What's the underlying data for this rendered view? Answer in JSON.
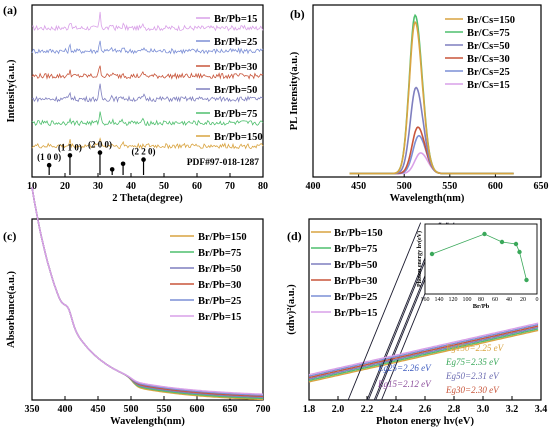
{
  "figure": {
    "panels": [
      "(a)",
      "(b)",
      "(c)",
      "(d)"
    ]
  },
  "chart_data": [
    {
      "panel": "(a)",
      "type": "line",
      "xlabel": "2 Theta(degree)",
      "ylabel": "Intensity(a.u.)",
      "xlim": [
        10,
        80
      ],
      "xticks": [
        10,
        20,
        30,
        40,
        50,
        60,
        70,
        80
      ],
      "grid": false,
      "legend_position": "top-right",
      "series": [
        {
          "name": "Br/Pb=15",
          "color": "#d9a0e8"
        },
        {
          "name": "Br/Pb=25",
          "color": "#7c8fd6"
        },
        {
          "name": "Br/Pb=30",
          "color": "#c8553a"
        },
        {
          "name": "Br/Pb=50",
          "color": "#7f7fbf"
        },
        {
          "name": "Br/Pb=75",
          "color": "#4fbf6e"
        },
        {
          "name": "Br/Pb=150",
          "color": "#d9a441"
        }
      ],
      "peaks": [
        21.5,
        30.6,
        34.3,
        37.6,
        43.8
      ],
      "reference": {
        "label": "PDF#97-018-1287",
        "sticks": [
          {
            "x": 15.2,
            "h": 0.35
          },
          {
            "x": 21.5,
            "h": 0.7
          },
          {
            "x": 30.6,
            "h": 0.8
          },
          {
            "x": 34.3,
            "h": 0.2
          },
          {
            "x": 37.6,
            "h": 0.4
          },
          {
            "x": 43.8,
            "h": 0.55
          }
        ],
        "hkl": [
          {
            "label": "(1 0 0)",
            "x": 15.2
          },
          {
            "label": "(1 1 0)",
            "x": 21.5
          },
          {
            "label": "(2 0 0)",
            "x": 30.6
          },
          {
            "label": "(2 2 0)",
            "x": 43.8
          }
        ]
      }
    },
    {
      "panel": "(b)",
      "type": "line",
      "xlabel": "Wavelength(nm)",
      "ylabel": "PL Intensity(a.u.)",
      "xlim": [
        400,
        650
      ],
      "xticks": [
        400,
        450,
        500,
        550,
        600,
        650
      ],
      "grid": false,
      "legend_position": "top-right",
      "series": [
        {
          "name": "Br/Cs=150",
          "color": "#d9a441",
          "peak_x": 512,
          "peak_y": 0.88
        },
        {
          "name": "Br/Cs=75",
          "color": "#4fbf6e",
          "peak_x": 512,
          "peak_y": 0.92
        },
        {
          "name": "Br/Cs=50",
          "color": "#7f7fbf",
          "peak_x": 513,
          "peak_y": 0.5
        },
        {
          "name": "Br/Cs=30",
          "color": "#c8553a",
          "peak_x": 515,
          "peak_y": 0.27
        },
        {
          "name": "Br/Cs=25",
          "color": "#7c8fd6",
          "peak_x": 516,
          "peak_y": 0.22
        },
        {
          "name": "Br/Cs=15",
          "color": "#d9a0e8",
          "peak_x": 518,
          "peak_y": 0.12
        }
      ]
    },
    {
      "panel": "(c)",
      "type": "line",
      "xlabel": "Wavelength(nm)",
      "ylabel": "Absorbance(a.u.)",
      "xlim": [
        350,
        700
      ],
      "xticks": [
        350,
        400,
        450,
        500,
        550,
        600,
        650,
        700
      ],
      "grid": false,
      "legend_position": "top-right",
      "series": [
        {
          "name": "Br/Pb=150",
          "color": "#d9a441"
        },
        {
          "name": "Br/Pb=75",
          "color": "#4fbf6e"
        },
        {
          "name": "Br/Pb=50",
          "color": "#7f7fbf"
        },
        {
          "name": "Br/Pb=30",
          "color": "#c8553a"
        },
        {
          "name": "Br/Pb=25",
          "color": "#7c8fd6"
        },
        {
          "name": "Br/Pb=15",
          "color": "#d9a0e8"
        }
      ]
    },
    {
      "panel": "(d)",
      "type": "line",
      "xlabel": "Photon energy hv(eV)",
      "ylabel": "(αhv)²(a.u.)",
      "xlim": [
        1.8,
        3.4
      ],
      "xticks": [
        1.8,
        2.0,
        2.2,
        2.4,
        2.6,
        2.8,
        3.0,
        3.2,
        3.4
      ],
      "grid": false,
      "legend_position": "top-left",
      "series": [
        {
          "name": "Br/Pb=150",
          "color": "#d9a441",
          "Eg": 2.25
        },
        {
          "name": "Br/Pb=75",
          "color": "#4fbf6e",
          "Eg": 2.35
        },
        {
          "name": "Br/Pb=50",
          "color": "#7f7fbf",
          "Eg": 2.31
        },
        {
          "name": "Br/Pb=30",
          "color": "#c8553a",
          "Eg": 2.3
        },
        {
          "name": "Br/Pb=25",
          "color": "#7c8fd6",
          "Eg": 2.26
        },
        {
          "name": "Br/Pb=15",
          "color": "#d9a0e8",
          "Eg": 2.12
        }
      ],
      "annotations": [
        {
          "label": "Eg150=2.25 eV",
          "color": "#d9a441"
        },
        {
          "label": "Eg75=2.35 eV",
          "color": "#3aa85a"
        },
        {
          "label": "Eg50=2.31 eV",
          "color": "#6a6ab0"
        },
        {
          "label": "Eg30=2.30 eV",
          "color": "#c8553a"
        },
        {
          "label": "Eg25=2.26 eV",
          "color": "#3c5bbf"
        },
        {
          "label": "Eg15=2.12 eV",
          "color": "#8a4a9a"
        }
      ],
      "inset": {
        "type": "scatter",
        "xlabel": "Br/Pb",
        "ylabel": "Photon energy hv(eV)",
        "xticks": [
          160,
          140,
          120,
          100,
          80,
          60,
          40,
          20,
          0
        ],
        "x_reversed": true,
        "color": "#3aa85a",
        "points": [
          {
            "x": 150,
            "y": 2.25
          },
          {
            "x": 75,
            "y": 2.35
          },
          {
            "x": 50,
            "y": 2.31
          },
          {
            "x": 30,
            "y": 2.3
          },
          {
            "x": 25,
            "y": 2.26
          },
          {
            "x": 15,
            "y": 2.12
          }
        ]
      }
    }
  ]
}
